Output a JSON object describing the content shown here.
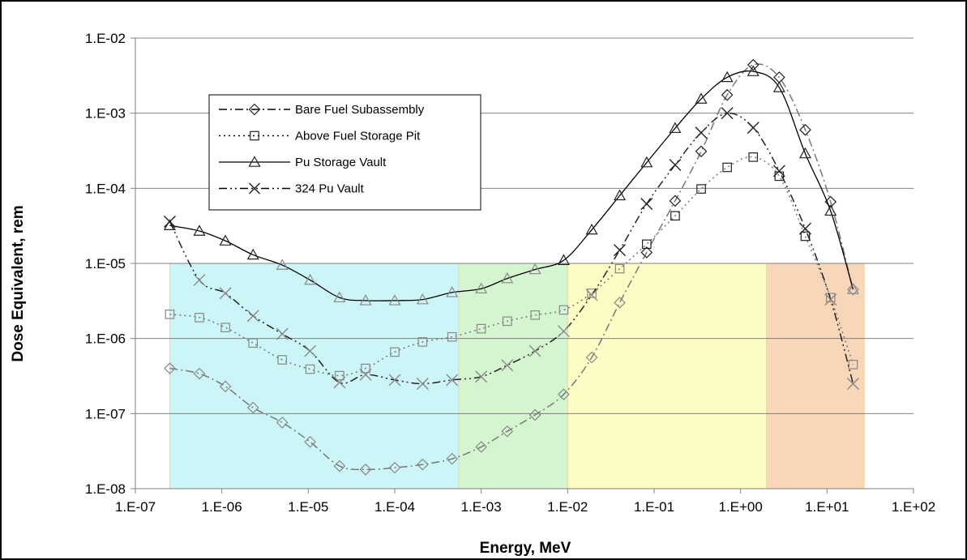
{
  "chart_data": {
    "type": "line",
    "xlabel": "Energy, MeV",
    "ylabel": "Dose Equivalent, rem",
    "xscale": "log",
    "yscale": "log",
    "xlim": [
      1e-07,
      100
    ],
    "ylim": [
      1e-08,
      0.01
    ],
    "xticks": [
      "1.E-07",
      "1.E-06",
      "1.E-05",
      "1.E-04",
      "1.E-03",
      "1.E-02",
      "1.E-01",
      "1.E+00",
      "1.E+01",
      "1.E+02"
    ],
    "yticks": [
      "1.E-08",
      "1.E-07",
      "1.E-06",
      "1.E-05",
      "1.E-04",
      "1.E-03",
      "1.E-02"
    ],
    "grid": "horizontal",
    "legend_position": "upper-left",
    "background_bands": [
      {
        "from": 2.5e-07,
        "to": 0.00055,
        "ymax": 1e-05,
        "color": "#ccf5f8"
      },
      {
        "from": 0.00055,
        "to": 0.01,
        "ymax": 1e-05,
        "color": "#d4f5cf"
      },
      {
        "from": 0.01,
        "to": 2.0,
        "ymax": 1e-05,
        "color": "#fdfcc4"
      },
      {
        "from": 2.0,
        "to": 27,
        "ymax": 1e-05,
        "color": "#f8d6b8"
      }
    ],
    "series": [
      {
        "name": "Bare Fuel Subassembly",
        "style": "dashdot",
        "marker": "diamond",
        "x": [
          2.5e-07,
          5.5e-07,
          1.1e-06,
          2.3e-06,
          5e-06,
          1.05e-05,
          2.3e-05,
          4.6e-05,
          0.0001,
          0.00021,
          0.00046,
          0.001,
          0.002,
          0.0042,
          0.009,
          0.019,
          0.04,
          0.082,
          0.175,
          0.35,
          0.7,
          1.4,
          2.8,
          5.6,
          11,
          20
        ],
        "y": [
          4e-07,
          3.4e-07,
          2.3e-07,
          1.2e-07,
          7.6e-08,
          4.2e-08,
          2e-08,
          1.8e-08,
          1.9e-08,
          2.1e-08,
          2.5e-08,
          3.6e-08,
          5.8e-08,
          9.6e-08,
          1.8e-07,
          5.6e-07,
          3e-06,
          1.4e-05,
          6.8e-05,
          0.00031,
          0.00175,
          0.0044,
          0.003,
          0.0006,
          6.6e-05,
          4.5e-06
        ]
      },
      {
        "name": "Above Fuel Storage Pit",
        "style": "dotted",
        "marker": "square",
        "x": [
          2.5e-07,
          5.5e-07,
          1.1e-06,
          2.3e-06,
          5e-06,
          1.05e-05,
          2.3e-05,
          4.6e-05,
          0.0001,
          0.00021,
          0.00046,
          0.001,
          0.002,
          0.0042,
          0.009,
          0.019,
          0.04,
          0.082,
          0.175,
          0.35,
          0.7,
          1.4,
          2.8,
          5.6,
          11,
          20
        ],
        "y": [
          2.1e-06,
          1.9e-06,
          1.4e-06,
          8.7e-07,
          5.2e-07,
          3.9e-07,
          3.2e-07,
          4e-07,
          6.6e-07,
          9e-07,
          1.05e-06,
          1.35e-06,
          1.7e-06,
          2.05e-06,
          2.4e-06,
          4e-06,
          8.5e-06,
          1.8e-05,
          4.3e-05,
          9.8e-05,
          0.00019,
          0.00026,
          0.000145,
          2.3e-05,
          3.5e-06,
          4.5e-07
        ]
      },
      {
        "name": "Pu Storage Vault",
        "style": "solid",
        "marker": "triangle",
        "x": [
          2.5e-07,
          5.5e-07,
          1.1e-06,
          2.3e-06,
          5e-06,
          1.05e-05,
          2.3e-05,
          4.6e-05,
          0.0001,
          0.00021,
          0.00046,
          0.001,
          0.002,
          0.0042,
          0.009,
          0.019,
          0.04,
          0.082,
          0.175,
          0.35,
          0.7,
          1.4,
          2.8,
          5.6,
          11,
          20
        ],
        "y": [
          3.2e-05,
          2.7e-05,
          2e-05,
          1.3e-05,
          9.5e-06,
          6e-06,
          3.5e-06,
          3.2e-06,
          3.2e-06,
          3.3e-06,
          4.1e-06,
          4.6e-06,
          6.3e-06,
          8.3e-06,
          1.1e-05,
          2.8e-05,
          8e-05,
          0.00022,
          0.00063,
          0.00155,
          0.003,
          0.0036,
          0.0022,
          0.00029,
          5e-05,
          4.5e-06
        ]
      },
      {
        "name": "324 Pu Vault",
        "style": "dashdotdot",
        "marker": "x",
        "x": [
          2.5e-07,
          5.5e-07,
          1.1e-06,
          2.3e-06,
          5e-06,
          1.05e-05,
          2.3e-05,
          4.6e-05,
          0.0001,
          0.00021,
          0.00046,
          0.001,
          0.002,
          0.0042,
          0.009,
          0.019,
          0.04,
          0.082,
          0.175,
          0.35,
          0.7,
          1.4,
          2.8,
          5.6,
          11,
          20
        ],
        "y": [
          3.6e-05,
          6e-06,
          4e-06,
          2e-06,
          1.15e-06,
          6.8e-07,
          2.6e-07,
          3.3e-07,
          2.8e-07,
          2.5e-07,
          2.8e-07,
          3.1e-07,
          4.4e-07,
          6.8e-07,
          1.25e-06,
          3.8e-06,
          1.5e-05,
          6.2e-05,
          0.000205,
          0.00055,
          0.001,
          0.00064,
          0.00017,
          2.9e-05,
          3.3e-06,
          2.5e-07
        ]
      }
    ]
  }
}
